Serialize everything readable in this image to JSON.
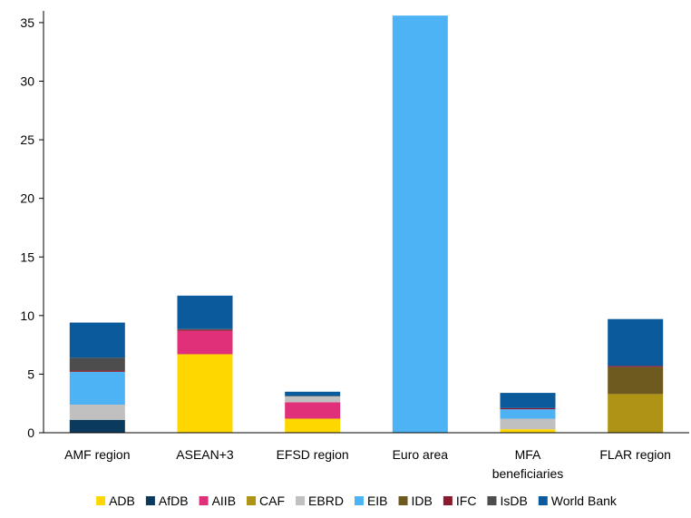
{
  "chart_data": {
    "type": "bar",
    "stacked": true,
    "title": "",
    "xlabel": "",
    "ylabel": "",
    "ylim": [
      0,
      36
    ],
    "yticks": [
      0,
      5,
      10,
      15,
      20,
      25,
      30,
      35
    ],
    "grid": false,
    "legend_position": "bottom",
    "categories": [
      "AMF region",
      "ASEAN+3",
      "EFSD region",
      "Euro area",
      "MFA beneficiaries",
      "FLAR region"
    ],
    "series": [
      {
        "name": "ADB",
        "color": "#FFD700",
        "values": [
          0,
          6.7,
          1.2,
          0,
          0.3,
          0
        ]
      },
      {
        "name": "AfDB",
        "color": "#0A3A5E",
        "values": [
          1.1,
          0,
          0,
          0,
          0,
          0
        ]
      },
      {
        "name": "AIIB",
        "color": "#E0307A",
        "values": [
          0,
          2.0,
          1.4,
          0,
          0,
          0
        ]
      },
      {
        "name": "CAF",
        "color": "#AE9314",
        "values": [
          0,
          0,
          0,
          0,
          0,
          3.3
        ]
      },
      {
        "name": "EBRD",
        "color": "#C0C0C0",
        "values": [
          1.3,
          0,
          0.5,
          0,
          0.9,
          0
        ]
      },
      {
        "name": "EIB",
        "color": "#4DB3F5",
        "values": [
          2.8,
          0,
          0,
          35.6,
          0.8,
          0
        ]
      },
      {
        "name": "IDB",
        "color": "#6E5A1E",
        "values": [
          0,
          0,
          0,
          0,
          0,
          2.3
        ]
      },
      {
        "name": "IFC",
        "color": "#8B1A2E",
        "values": [
          0.1,
          0.1,
          0,
          0,
          0.1,
          0.1
        ]
      },
      {
        "name": "IsDB",
        "color": "#4D4D4D",
        "values": [
          1.1,
          0.05,
          0.05,
          0,
          0,
          0
        ]
      },
      {
        "name": "World Bank",
        "color": "#0B5A9C",
        "values": [
          3.0,
          2.85,
          0.35,
          0,
          1.3,
          4.0
        ]
      }
    ]
  }
}
